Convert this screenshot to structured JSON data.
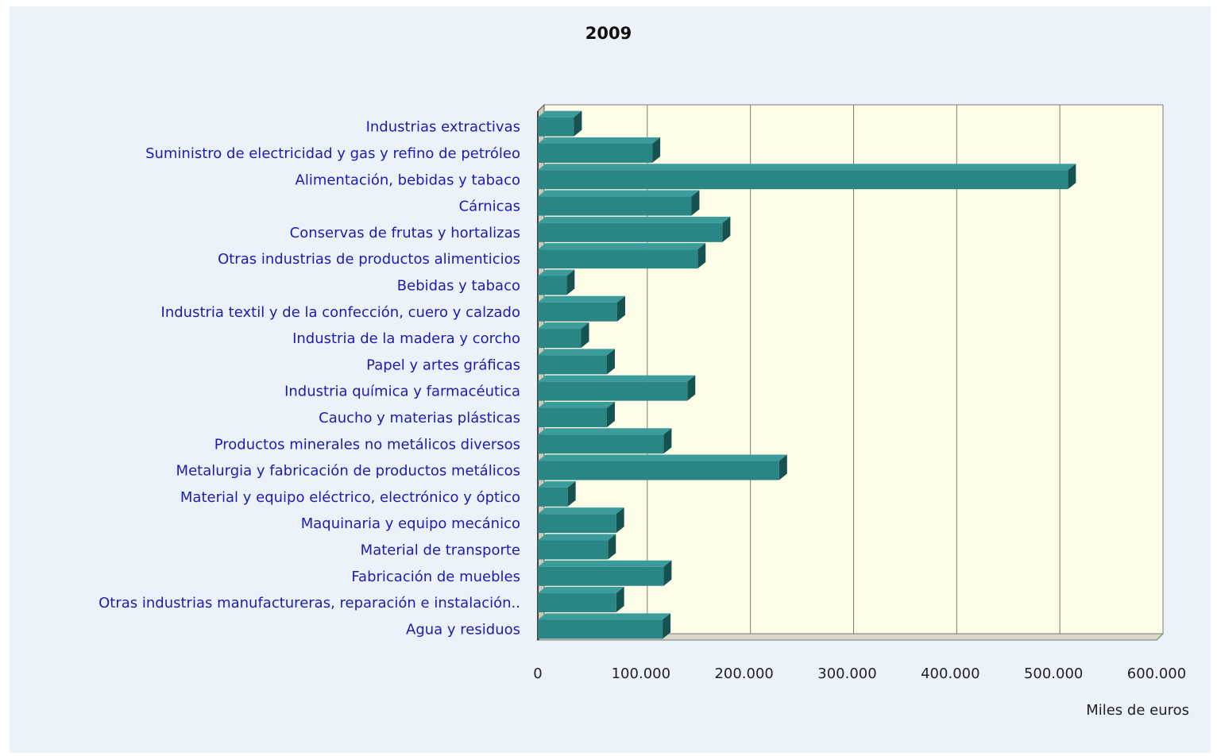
{
  "chart_data": {
    "type": "bar",
    "orientation": "horizontal",
    "style": "3d",
    "title": "2009",
    "xlabel": "Miles de euros",
    "ylabel": "",
    "xlim": [
      0,
      600000
    ],
    "x_ticks": [
      "0",
      "100.000",
      "200.000",
      "300.000",
      "400.000",
      "500.000",
      "600.000"
    ],
    "grid": true,
    "categories": [
      "Industrias extractivas",
      "Suministro de electricidad y gas y refino de petróleo",
      "Alimentación, bebidas y tabaco",
      "Cárnicas",
      "Conservas de frutas y hortalizas",
      "Otras industrias de productos alimenticios",
      "Bebidas y tabaco",
      "Industria textil y de la confección, cuero y calzado",
      "Industria de la madera y corcho",
      "Papel y artes gráficas",
      "Industria química y farmacéutica",
      "Caucho y materias plásticas",
      "Productos minerales no metálicos diversos",
      "Metalurgia y fabricación de productos metálicos",
      "Material y equipo eléctrico, electrónico y óptico",
      "Maquinaria y equipo mecánico",
      "Material de transporte",
      "Fabricación de muebles",
      "Otras industrias manufactureras, reparación e instalación..",
      "Agua y residuos"
    ],
    "values": [
      35000,
      111000,
      514000,
      149000,
      179000,
      155000,
      28000,
      77000,
      42000,
      67000,
      145000,
      67000,
      122000,
      234000,
      29000,
      76000,
      68000,
      122000,
      76000,
      121000
    ],
    "colors": {
      "bar_front": "#2a8585",
      "bar_top": "#3c9c9c",
      "bar_side": "#175252",
      "plot_bg": "#fefee8",
      "panel_bg": "#ebf2f9",
      "grid": "#7a7a7a",
      "category_text": "#1c1cb0"
    }
  }
}
